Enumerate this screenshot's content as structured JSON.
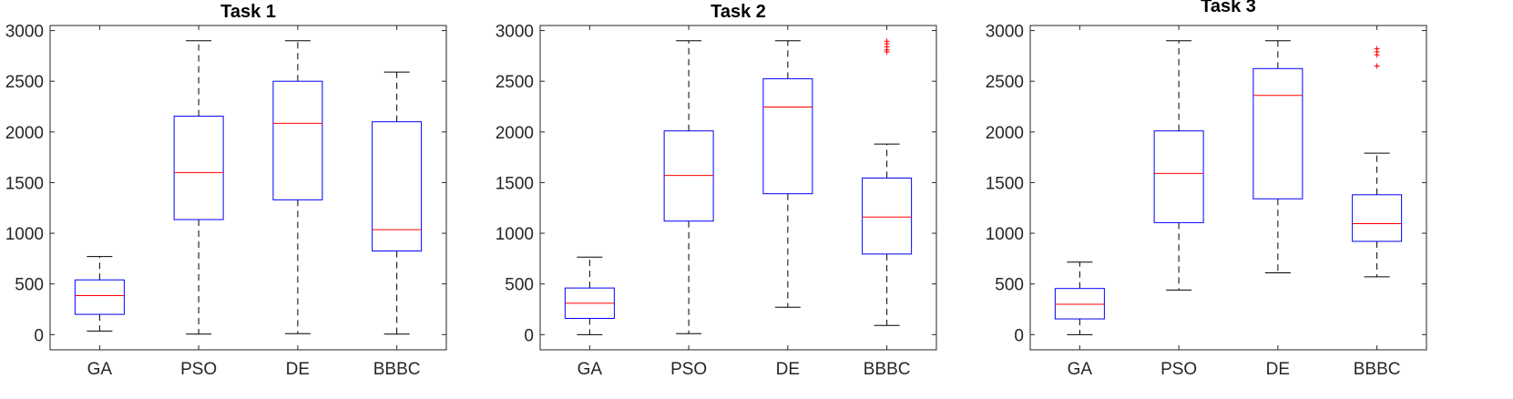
{
  "chart_data": [
    {
      "type": "boxplot",
      "title": "Task 1",
      "categories": [
        "GA",
        "PSO",
        "DE",
        "BBBC"
      ],
      "ylim": [
        -150,
        3050
      ],
      "yticks": [
        0,
        500,
        1000,
        1500,
        2000,
        2500,
        3000
      ],
      "grid": false,
      "boxes": [
        {
          "whisker_low": 35,
          "q1": 200,
          "median": 385,
          "q3": 540,
          "whisker_high": 770,
          "outliers": []
        },
        {
          "whisker_low": 5,
          "q1": 1135,
          "median": 1600,
          "q3": 2155,
          "whisker_high": 2900,
          "outliers": []
        },
        {
          "whisker_low": 10,
          "q1": 1330,
          "median": 2085,
          "q3": 2500,
          "whisker_high": 2900,
          "outliers": []
        },
        {
          "whisker_low": 5,
          "q1": 825,
          "median": 1035,
          "q3": 2100,
          "whisker_high": 2590,
          "outliers": []
        }
      ]
    },
    {
      "type": "boxplot",
      "title": "Task 2",
      "categories": [
        "GA",
        "PSO",
        "DE",
        "BBBC"
      ],
      "ylim": [
        -150,
        3050
      ],
      "yticks": [
        0,
        500,
        1000,
        1500,
        2000,
        2500,
        3000
      ],
      "grid": false,
      "boxes": [
        {
          "whisker_low": 0,
          "q1": 160,
          "median": 310,
          "q3": 460,
          "whisker_high": 765,
          "outliers": []
        },
        {
          "whisker_low": 10,
          "q1": 1120,
          "median": 1570,
          "q3": 2010,
          "whisker_high": 2900,
          "outliers": []
        },
        {
          "whisker_low": 270,
          "q1": 1390,
          "median": 2245,
          "q3": 2525,
          "whisker_high": 2900,
          "outliers": []
        },
        {
          "whisker_low": 90,
          "q1": 795,
          "median": 1160,
          "q3": 1545,
          "whisker_high": 1880,
          "outliers": [
            2790,
            2810,
            2840,
            2870,
            2895
          ]
        }
      ]
    },
    {
      "type": "boxplot",
      "title": "Task 3",
      "categories": [
        "GA",
        "PSO",
        "DE",
        "BBBC"
      ],
      "ylim": [
        -150,
        3050
      ],
      "yticks": [
        0,
        500,
        1000,
        1500,
        2000,
        2500,
        3000
      ],
      "grid": false,
      "boxes": [
        {
          "whisker_low": 0,
          "q1": 155,
          "median": 300,
          "q3": 455,
          "whisker_high": 715,
          "outliers": []
        },
        {
          "whisker_low": 440,
          "q1": 1105,
          "median": 1590,
          "q3": 2010,
          "whisker_high": 2900,
          "outliers": []
        },
        {
          "whisker_low": 610,
          "q1": 1340,
          "median": 2360,
          "q3": 2625,
          "whisker_high": 2900,
          "outliers": []
        },
        {
          "whisker_low": 570,
          "q1": 920,
          "median": 1095,
          "q3": 1380,
          "whisker_high": 1790,
          "outliers": [
            2650,
            2760,
            2790,
            2820
          ]
        }
      ]
    }
  ],
  "colors": {
    "box": "#0000ff",
    "median": "#ff0000",
    "whisker": "#000000",
    "outlier": "#ff0000",
    "axis": "#262626"
  }
}
